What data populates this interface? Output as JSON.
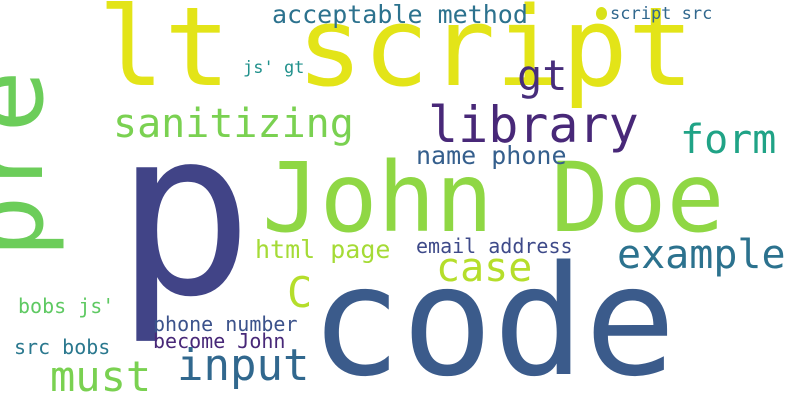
{
  "words": [
    {
      "text": "p",
      "color": "#414487",
      "orientation": "horizontal"
    },
    {
      "text": "code",
      "color": "#3b5b8b",
      "orientation": "horizontal"
    },
    {
      "text": "lt script",
      "color": "#e3e418",
      "orientation": "horizontal"
    },
    {
      "text": "John Doe",
      "color": "#8fd744",
      "orientation": "horizontal"
    },
    {
      "text": "pre",
      "color": "#6ccd5a",
      "orientation": "vertical"
    },
    {
      "text": "library",
      "color": "#482878",
      "orientation": "horizontal"
    },
    {
      "text": "sanitizing",
      "color": "#7ad151",
      "orientation": "horizontal"
    },
    {
      "text": "form",
      "color": "#20a386",
      "orientation": "horizontal"
    },
    {
      "text": "example",
      "color": "#2c728e",
      "orientation": "horizontal"
    },
    {
      "text": "gt",
      "color": "#472d7b",
      "orientation": "horizontal"
    },
    {
      "text": "acceptable method",
      "color": "#2c728e",
      "orientation": "horizontal"
    },
    {
      "text": "name phone",
      "color": "#355f8d",
      "orientation": "horizontal"
    },
    {
      "text": "html page",
      "color": "#a5db36",
      "orientation": "horizontal"
    },
    {
      "text": "email address",
      "color": "#3e4a89",
      "orientation": "horizontal"
    },
    {
      "text": "case",
      "color": "#b5de2b",
      "orientation": "horizontal"
    },
    {
      "text": "C",
      "color": "#b5de2b",
      "orientation": "horizontal"
    },
    {
      "text": "input",
      "color": "#31688e",
      "orientation": "horizontal"
    },
    {
      "text": "must",
      "color": "#7ad151",
      "orientation": "horizontal"
    },
    {
      "text": "phone number",
      "color": "#3b528b",
      "orientation": "horizontal"
    },
    {
      "text": "become John",
      "color": "#482878",
      "orientation": "horizontal"
    },
    {
      "text": "bobs js'",
      "color": "#5ec962",
      "orientation": "horizontal"
    },
    {
      "text": "src bobs",
      "color": "#2a788e",
      "orientation": "horizontal"
    },
    {
      "text": "js' gt",
      "color": "#21918c",
      "orientation": "horizontal"
    },
    {
      "text": "script src",
      "color": "#31688e",
      "orientation": "horizontal"
    }
  ],
  "dot_color": "#d8e219"
}
